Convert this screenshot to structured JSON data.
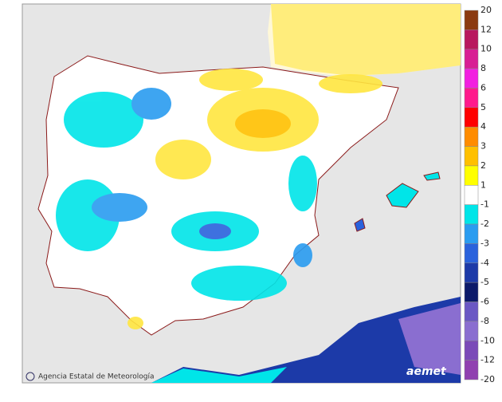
{
  "legend": {
    "labels": [
      20,
      12,
      10,
      8,
      6,
      5,
      4,
      3,
      2,
      1,
      -1,
      -2,
      -3,
      -4,
      -5,
      -6,
      -8,
      -10,
      -12,
      -20
    ],
    "colors": [
      "#8b3a10",
      "#b8185e",
      "#d81e94",
      "#f21fe0",
      "#ff1a8c",
      "#ff0000",
      "#ff8c00",
      "#ffc000",
      "#ffff00",
      "#ffffff",
      "#00e5e8",
      "#2a9cf0",
      "#2a62dc",
      "#1c3aa8",
      "#0c1a6a",
      "#6a58c4",
      "#8a6ed0",
      "#7a4ab8",
      "#9040b0"
    ]
  },
  "footer": {
    "credit": "Agencia Estatal de Meteorología",
    "logo": "aemet"
  }
}
